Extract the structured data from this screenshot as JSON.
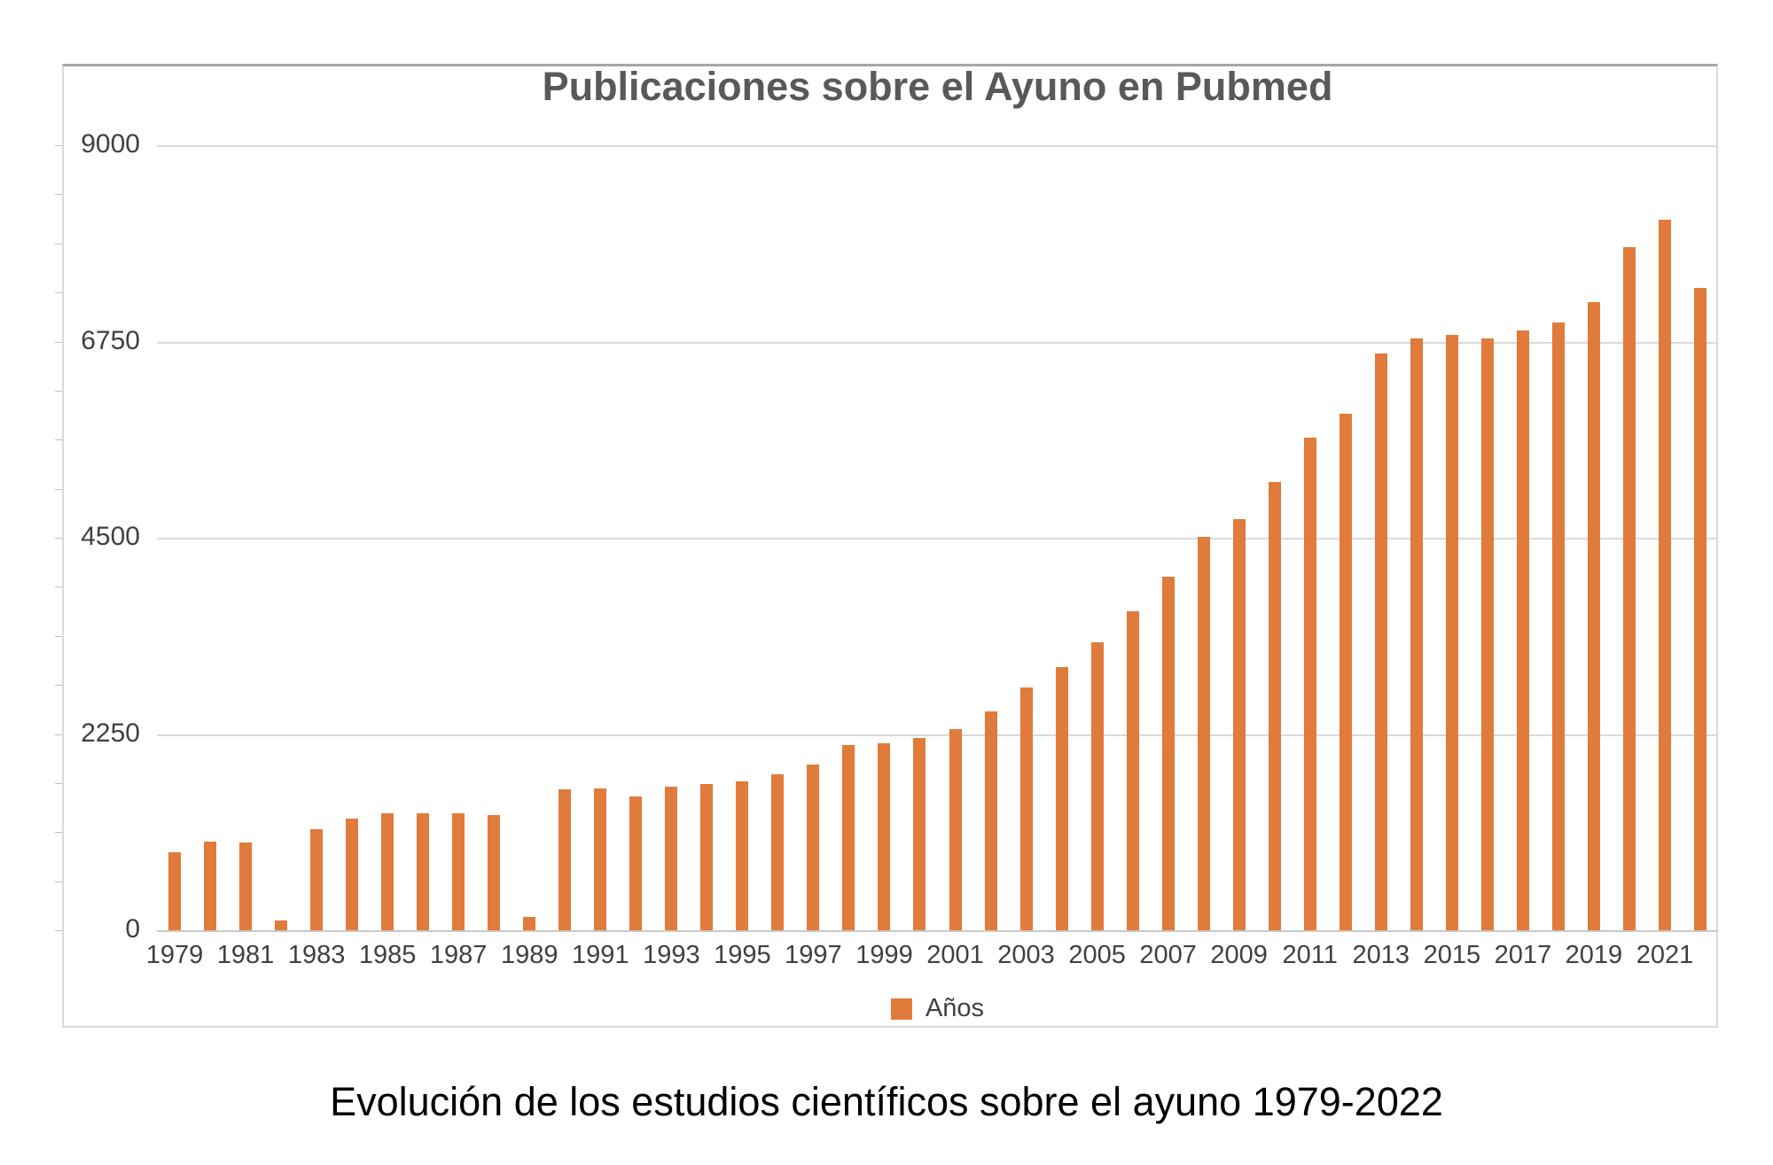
{
  "chart": {
    "title": "Publicaciones sobre el Ayuno en Pubmed",
    "legend_label": "Años",
    "caption": "Evolución de los estudios científicos sobre el ayuno 1979-2022",
    "bar_color": "#e07b3b"
  },
  "chart_data": {
    "type": "bar",
    "title": "Publicaciones sobre el Ayuno en Pubmed",
    "xlabel": "",
    "ylabel": "",
    "ylim": [
      0,
      9000
    ],
    "y_ticks": [
      0,
      2250,
      4500,
      6750,
      9000
    ],
    "grid": true,
    "legend": [
      "Años"
    ],
    "legend_position": "bottom",
    "x_tick_labels": [
      "1979",
      "1981",
      "1983",
      "1985",
      "1987",
      "1989",
      "1991",
      "1993",
      "1995",
      "1997",
      "1999",
      "2001",
      "2003",
      "2005",
      "2007",
      "2009",
      "2011",
      "2013",
      "2015",
      "2017",
      "2019",
      "2021"
    ],
    "categories": [
      1979,
      1980,
      1981,
      1982,
      1983,
      1984,
      1985,
      1986,
      1987,
      1988,
      1989,
      1990,
      1991,
      1992,
      1993,
      1994,
      1995,
      1996,
      1997,
      1998,
      1999,
      2000,
      2001,
      2002,
      2003,
      2004,
      2005,
      2006,
      2007,
      2008,
      2009,
      2010,
      2011,
      2012,
      2013,
      2014,
      2015,
      2016,
      2017,
      2018,
      2019,
      2020,
      2021,
      2022
    ],
    "series": [
      {
        "name": "Años",
        "values": [
          890,
          1015,
          1010,
          110,
          1160,
          1280,
          1340,
          1345,
          1345,
          1320,
          150,
          1615,
          1630,
          1530,
          1645,
          1680,
          1710,
          1790,
          1900,
          2120,
          2145,
          2200,
          2310,
          2510,
          2780,
          3015,
          3305,
          3660,
          4050,
          4515,
          4710,
          5140,
          5645,
          5920,
          6610,
          6790,
          6830,
          6790,
          6880,
          6970,
          7200,
          7835,
          8145,
          7360
        ]
      }
    ]
  }
}
